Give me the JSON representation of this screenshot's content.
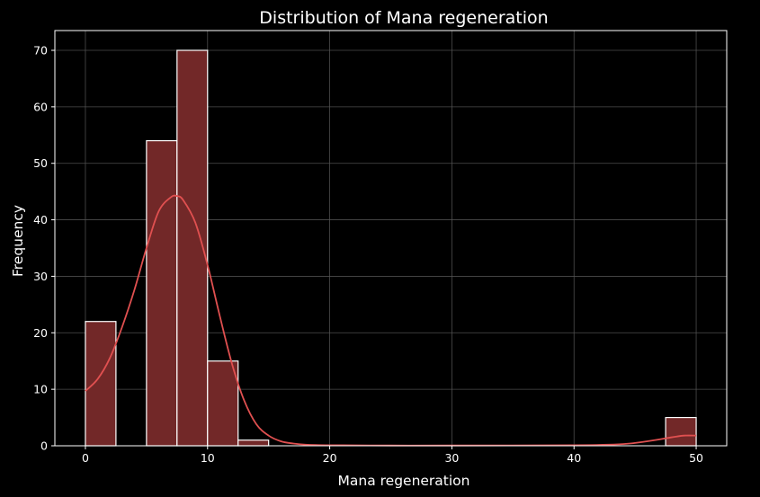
{
  "chart_data": {
    "type": "bar",
    "title": "Distribution of Mana regeneration",
    "xlabel": "Mana regeneration",
    "ylabel": "Frequency",
    "xlim": [
      -2.5,
      52.5
    ],
    "ylim": [
      0,
      73.5
    ],
    "xticks": [
      0,
      10,
      20,
      30,
      40,
      50
    ],
    "yticks": [
      0,
      10,
      20,
      30,
      40,
      50,
      60,
      70
    ],
    "grid": true,
    "bins": [
      {
        "start": 0,
        "end": 2.5,
        "count": 22
      },
      {
        "start": 2.5,
        "end": 5,
        "count": 0
      },
      {
        "start": 5,
        "end": 7.5,
        "count": 54
      },
      {
        "start": 7.5,
        "end": 10,
        "count": 70
      },
      {
        "start": 10,
        "end": 12.5,
        "count": 15
      },
      {
        "start": 12.5,
        "end": 15,
        "count": 1
      },
      {
        "start": 15,
        "end": 17.5,
        "count": 0
      },
      {
        "start": 17.5,
        "end": 20,
        "count": 0
      },
      {
        "start": 20,
        "end": 22.5,
        "count": 0
      },
      {
        "start": 22.5,
        "end": 25,
        "count": 0
      },
      {
        "start": 25,
        "end": 27.5,
        "count": 0
      },
      {
        "start": 27.5,
        "end": 30,
        "count": 0
      },
      {
        "start": 30,
        "end": 32.5,
        "count": 0
      },
      {
        "start": 32.5,
        "end": 35,
        "count": 0
      },
      {
        "start": 35,
        "end": 37.5,
        "count": 0
      },
      {
        "start": 37.5,
        "end": 40,
        "count": 0
      },
      {
        "start": 40,
        "end": 42.5,
        "count": 0
      },
      {
        "start": 42.5,
        "end": 45,
        "count": 0
      },
      {
        "start": 45,
        "end": 47.5,
        "count": 0
      },
      {
        "start": 47.5,
        "end": 50,
        "count": 5
      }
    ],
    "kde": {
      "x": [
        0,
        1,
        2,
        3,
        4,
        5,
        6,
        7,
        7.5,
        8,
        9,
        10,
        11,
        12,
        13,
        14,
        15,
        16,
        17,
        18,
        20,
        25,
        30,
        40,
        44,
        46,
        48,
        49,
        50
      ],
      "y": [
        9.7,
        11.8,
        15.5,
        21,
        27.5,
        35,
        41.5,
        44,
        44.2,
        43.5,
        39.5,
        32,
        23,
        14.5,
        8,
        3.8,
        1.8,
        0.8,
        0.4,
        0.2,
        0.1,
        0.05,
        0.05,
        0.1,
        0.3,
        0.8,
        1.5,
        1.8,
        1.8
      ]
    },
    "colors": {
      "background": "#000000",
      "bar_fill": "#722828",
      "bar_edge": "#ffffff",
      "kde_line": "#e05050",
      "grid": "#555555",
      "text": "#ffffff"
    }
  }
}
